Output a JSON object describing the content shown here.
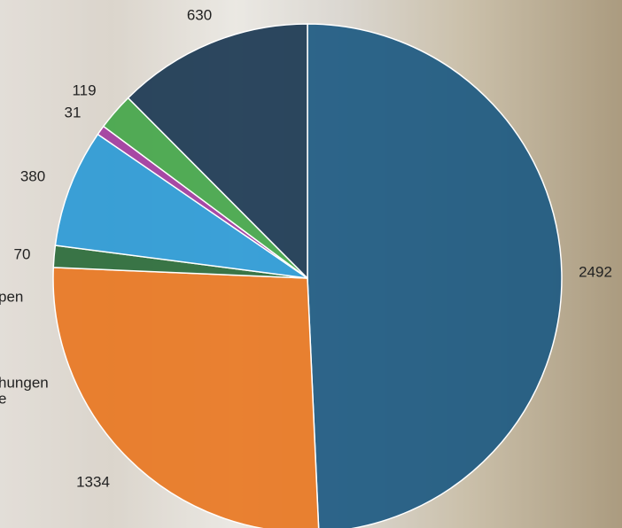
{
  "chart_data": {
    "type": "pie",
    "values": [
      2492,
      1334,
      70,
      380,
      31,
      119,
      630
    ],
    "colors": [
      "#1d5a82",
      "#e87722",
      "#2a6b3a",
      "#2b9ad6",
      "#a23ca0",
      "#44a64a",
      "#1b3852"
    ],
    "annotations": [
      "pen",
      "hungen",
      "e"
    ]
  }
}
